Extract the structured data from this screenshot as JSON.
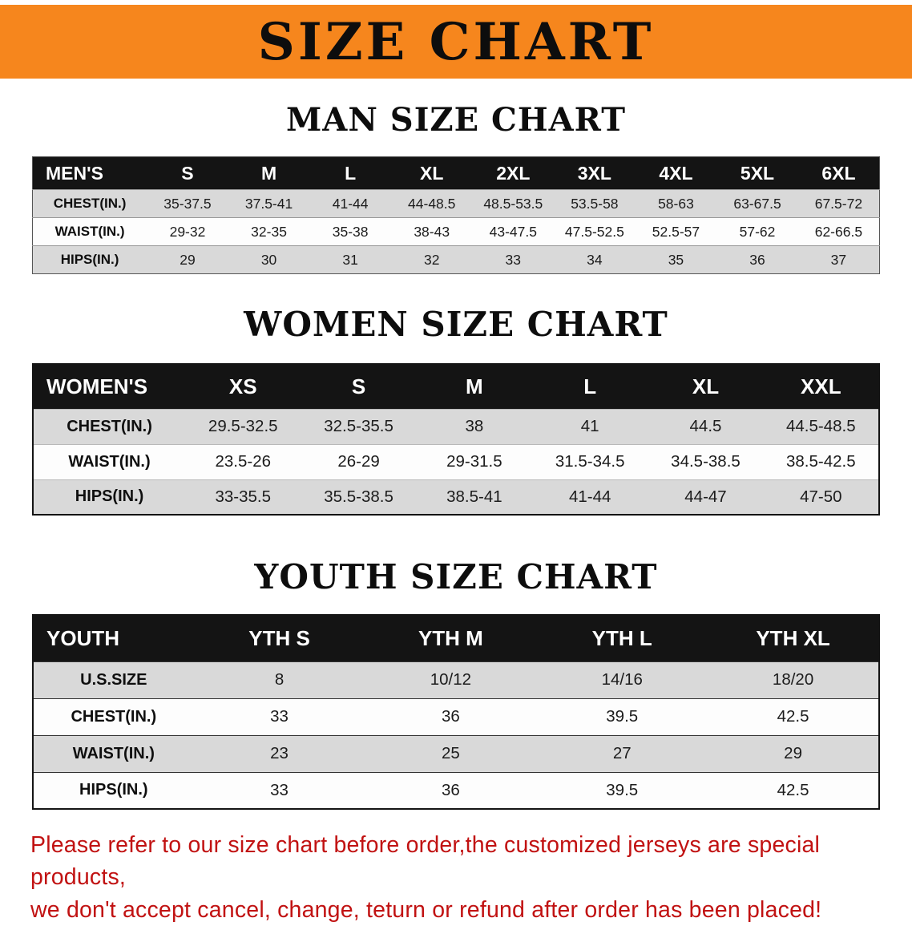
{
  "banner": {
    "title": "SIZE CHART"
  },
  "colors": {
    "banner_bg": "#f6861d",
    "header_bg": "#141414",
    "row_alt": "#d9d9d9",
    "note_color": "#c11212"
  },
  "tables": [
    {
      "id": "men",
      "heading": "MAN SIZE CHART",
      "header": [
        "MEN'S",
        "S",
        "M",
        "L",
        "XL",
        "2XL",
        "3XL",
        "4XL",
        "5XL",
        "6XL"
      ],
      "rows": [
        [
          "CHEST(IN.)",
          "35-37.5",
          "37.5-41",
          "41-44",
          "44-48.5",
          "48.5-53.5",
          "53.5-58",
          "58-63",
          "63-67.5",
          "67.5-72"
        ],
        [
          "WAIST(IN.)",
          "29-32",
          "32-35",
          "35-38",
          "38-43",
          "43-47.5",
          "47.5-52.5",
          "52.5-57",
          "57-62",
          "62-66.5"
        ],
        [
          "HIPS(IN.)",
          "29",
          "30",
          "31",
          "32",
          "33",
          "34",
          "35",
          "36",
          "37"
        ]
      ]
    },
    {
      "id": "women",
      "heading": "WOMEN SIZE CHART",
      "header": [
        "WOMEN'S",
        "XS",
        "S",
        "M",
        "L",
        "XL",
        "XXL"
      ],
      "rows": [
        [
          "CHEST(IN.)",
          "29.5-32.5",
          "32.5-35.5",
          "38",
          "41",
          "44.5",
          "44.5-48.5"
        ],
        [
          "WAIST(IN.)",
          "23.5-26",
          "26-29",
          "29-31.5",
          "31.5-34.5",
          "34.5-38.5",
          "38.5-42.5"
        ],
        [
          "HIPS(IN.)",
          "33-35.5",
          "35.5-38.5",
          "38.5-41",
          "41-44",
          "44-47",
          "47-50"
        ]
      ]
    },
    {
      "id": "youth",
      "heading": "YOUTH SIZE CHART",
      "header": [
        "YOUTH",
        "YTH S",
        "YTH M",
        "YTH L",
        "YTH XL"
      ],
      "rows": [
        [
          "U.S.SIZE",
          "8",
          "10/12",
          "14/16",
          "18/20"
        ],
        [
          "CHEST(IN.)",
          "33",
          "36",
          "39.5",
          "42.5"
        ],
        [
          "WAIST(IN.)",
          "23",
          "25",
          "27",
          "29"
        ],
        [
          "HIPS(IN.)",
          "33",
          "36",
          "39.5",
          "42.5"
        ]
      ]
    }
  ],
  "note": {
    "lines": [
      "Please refer to our size chart before order,the customized jerseys are special products,",
      "we don't accept cancel, change, teturn or refund after order has been placed!"
    ]
  }
}
